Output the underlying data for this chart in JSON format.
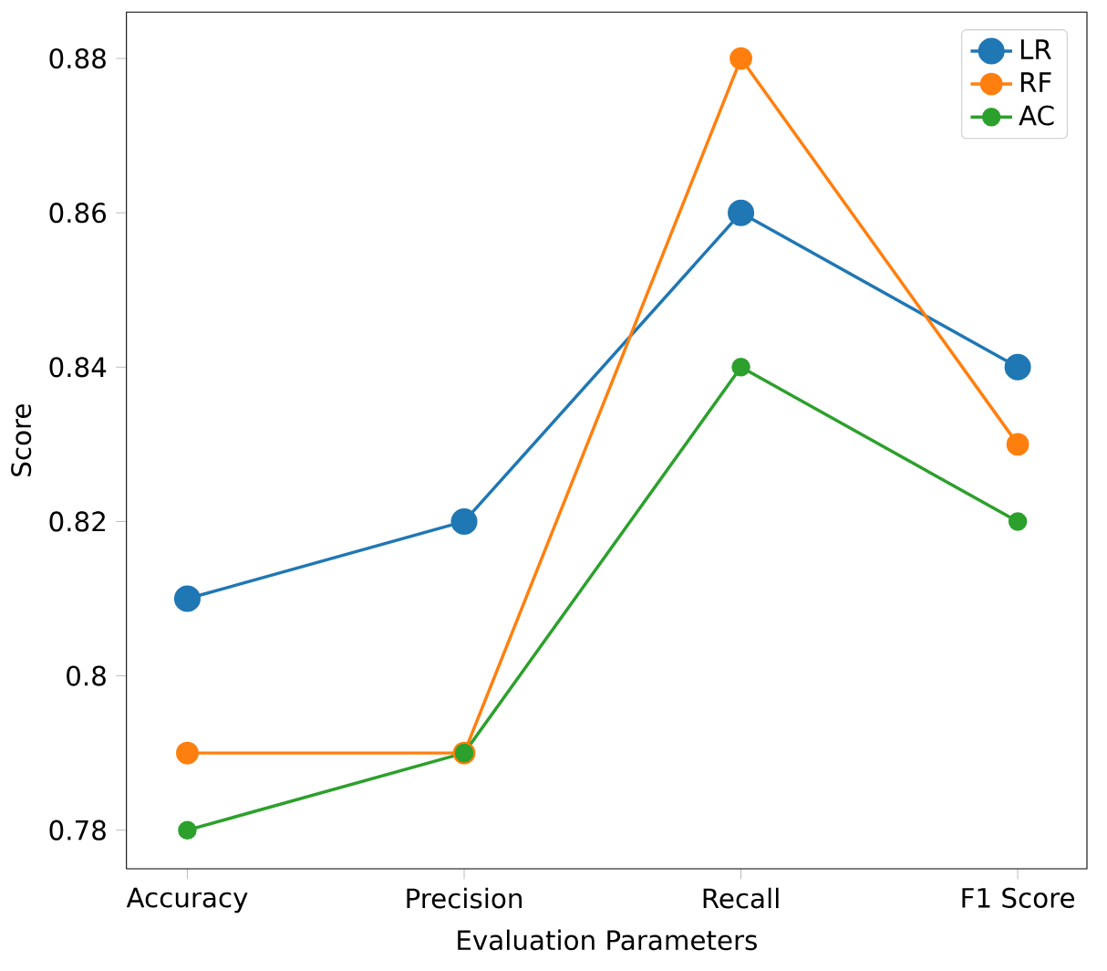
{
  "chart_data": {
    "type": "line",
    "xlabel": "Evaluation Parameters",
    "ylabel": "Score",
    "categories": [
      "Accuracy",
      "Precision",
      "Recall",
      "F1 Score"
    ],
    "series": [
      {
        "name": "LR",
        "color": "#1f77b4",
        "values": [
          0.81,
          0.82,
          0.86,
          0.84
        ]
      },
      {
        "name": "RF",
        "color": "#ff7f0e",
        "values": [
          0.79,
          0.79,
          0.88,
          0.83
        ]
      },
      {
        "name": "AC",
        "color": "#2ca02c",
        "values": [
          0.78,
          0.79,
          0.84,
          0.82
        ]
      }
    ],
    "ylim": [
      0.775,
      0.886
    ],
    "yticks": [
      0.78,
      0.8,
      0.82,
      0.84,
      0.86,
      0.88
    ],
    "legend": "top right",
    "marker": "circle",
    "line_style": "solid",
    "grid": false
  }
}
